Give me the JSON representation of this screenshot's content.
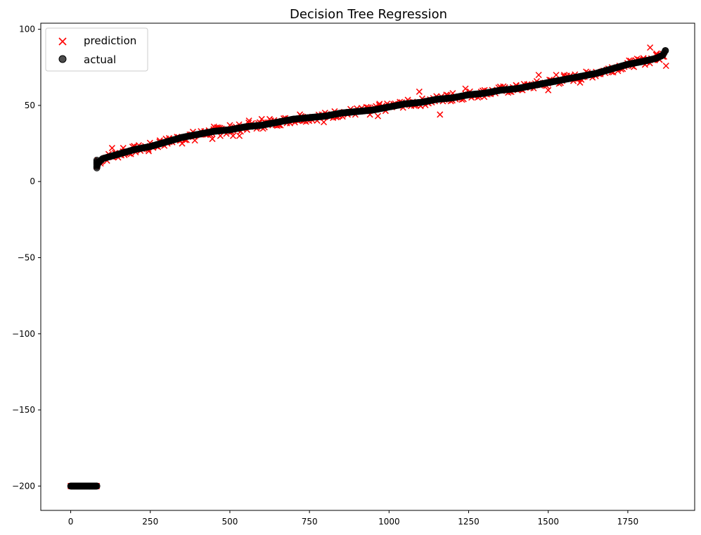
{
  "chart_data": {
    "type": "scatter",
    "title": "Decision Tree Regression",
    "xlabel": "",
    "ylabel": "",
    "xlim": [
      -94,
      1960
    ],
    "ylim": [
      -216,
      104
    ],
    "x_ticks": [
      0,
      250,
      500,
      750,
      1000,
      1250,
      1500,
      1750
    ],
    "y_ticks": [
      100,
      50,
      0,
      -50,
      -100,
      -150,
      -200
    ],
    "x_tick_labels": [
      "0",
      "250",
      "500",
      "750",
      "1000",
      "1250",
      "1500",
      "1750"
    ],
    "y_tick_labels": [
      "100",
      "50",
      "0",
      "−50",
      "−100",
      "−150",
      "−200"
    ],
    "grid": false,
    "legend_position": "top-left",
    "series": [
      {
        "name": "prediction",
        "marker": "x",
        "color": "#ff0000",
        "points": [
          [
            0,
            -200
          ],
          [
            20,
            -200
          ],
          [
            40,
            -200
          ],
          [
            60,
            -200
          ],
          [
            80,
            -200
          ],
          [
            82,
            10
          ],
          [
            85,
            14
          ],
          [
            95,
            13
          ],
          [
            130,
            22
          ],
          [
            165,
            22
          ],
          [
            200,
            23
          ],
          [
            245,
            20
          ],
          [
            280,
            27
          ],
          [
            310,
            26
          ],
          [
            350,
            25
          ],
          [
            390,
            27
          ],
          [
            420,
            33
          ],
          [
            445,
            28
          ],
          [
            450,
            36
          ],
          [
            470,
            30
          ],
          [
            500,
            37
          ],
          [
            510,
            30
          ],
          [
            530,
            30
          ],
          [
            560,
            40
          ],
          [
            600,
            41
          ],
          [
            625,
            41
          ],
          [
            650,
            38
          ],
          [
            700,
            40
          ],
          [
            720,
            44
          ],
          [
            750,
            42
          ],
          [
            795,
            39
          ],
          [
            820,
            44
          ],
          [
            870,
            44
          ],
          [
            900,
            46
          ],
          [
            940,
            44
          ],
          [
            965,
            43
          ],
          [
            970,
            51
          ],
          [
            1000,
            50
          ],
          [
            1040,
            52
          ],
          [
            1095,
            59
          ],
          [
            1120,
            53
          ],
          [
            1160,
            44
          ],
          [
            1180,
            57
          ],
          [
            1200,
            58
          ],
          [
            1240,
            61
          ],
          [
            1280,
            57
          ],
          [
            1300,
            60
          ],
          [
            1350,
            62
          ],
          [
            1400,
            63
          ],
          [
            1470,
            70
          ],
          [
            1500,
            60
          ],
          [
            1525,
            70
          ],
          [
            1550,
            70
          ],
          [
            1600,
            65
          ],
          [
            1650,
            72
          ],
          [
            1700,
            75
          ],
          [
            1750,
            77
          ],
          [
            1800,
            80
          ],
          [
            1820,
            88
          ],
          [
            1840,
            84
          ],
          [
            1850,
            80
          ],
          [
            1860,
            82
          ],
          [
            1870,
            76
          ]
        ]
      },
      {
        "name": "actual",
        "marker": "o",
        "color": "#000000",
        "curve": [
          [
            0,
            -200
          ],
          [
            82,
            -200
          ],
          [
            82,
            9
          ],
          [
            84,
            11
          ],
          [
            90,
            13
          ],
          [
            100,
            15
          ],
          [
            150,
            18
          ],
          [
            200,
            21
          ],
          [
            250,
            23
          ],
          [
            300,
            26
          ],
          [
            350,
            29
          ],
          [
            400,
            31
          ],
          [
            450,
            33
          ],
          [
            500,
            34
          ],
          [
            550,
            36
          ],
          [
            600,
            37
          ],
          [
            650,
            39
          ],
          [
            700,
            41
          ],
          [
            750,
            42
          ],
          [
            800,
            43
          ],
          [
            850,
            45
          ],
          [
            900,
            46
          ],
          [
            950,
            47
          ],
          [
            1000,
            49
          ],
          [
            1050,
            51
          ],
          [
            1100,
            52
          ],
          [
            1150,
            54
          ],
          [
            1200,
            55
          ],
          [
            1250,
            57
          ],
          [
            1300,
            58
          ],
          [
            1350,
            60
          ],
          [
            1400,
            61
          ],
          [
            1450,
            63
          ],
          [
            1500,
            65
          ],
          [
            1550,
            67
          ],
          [
            1600,
            69
          ],
          [
            1650,
            71
          ],
          [
            1700,
            74
          ],
          [
            1750,
            77
          ],
          [
            1800,
            79
          ],
          [
            1840,
            81
          ],
          [
            1860,
            83
          ],
          [
            1868,
            86
          ]
        ]
      }
    ]
  }
}
